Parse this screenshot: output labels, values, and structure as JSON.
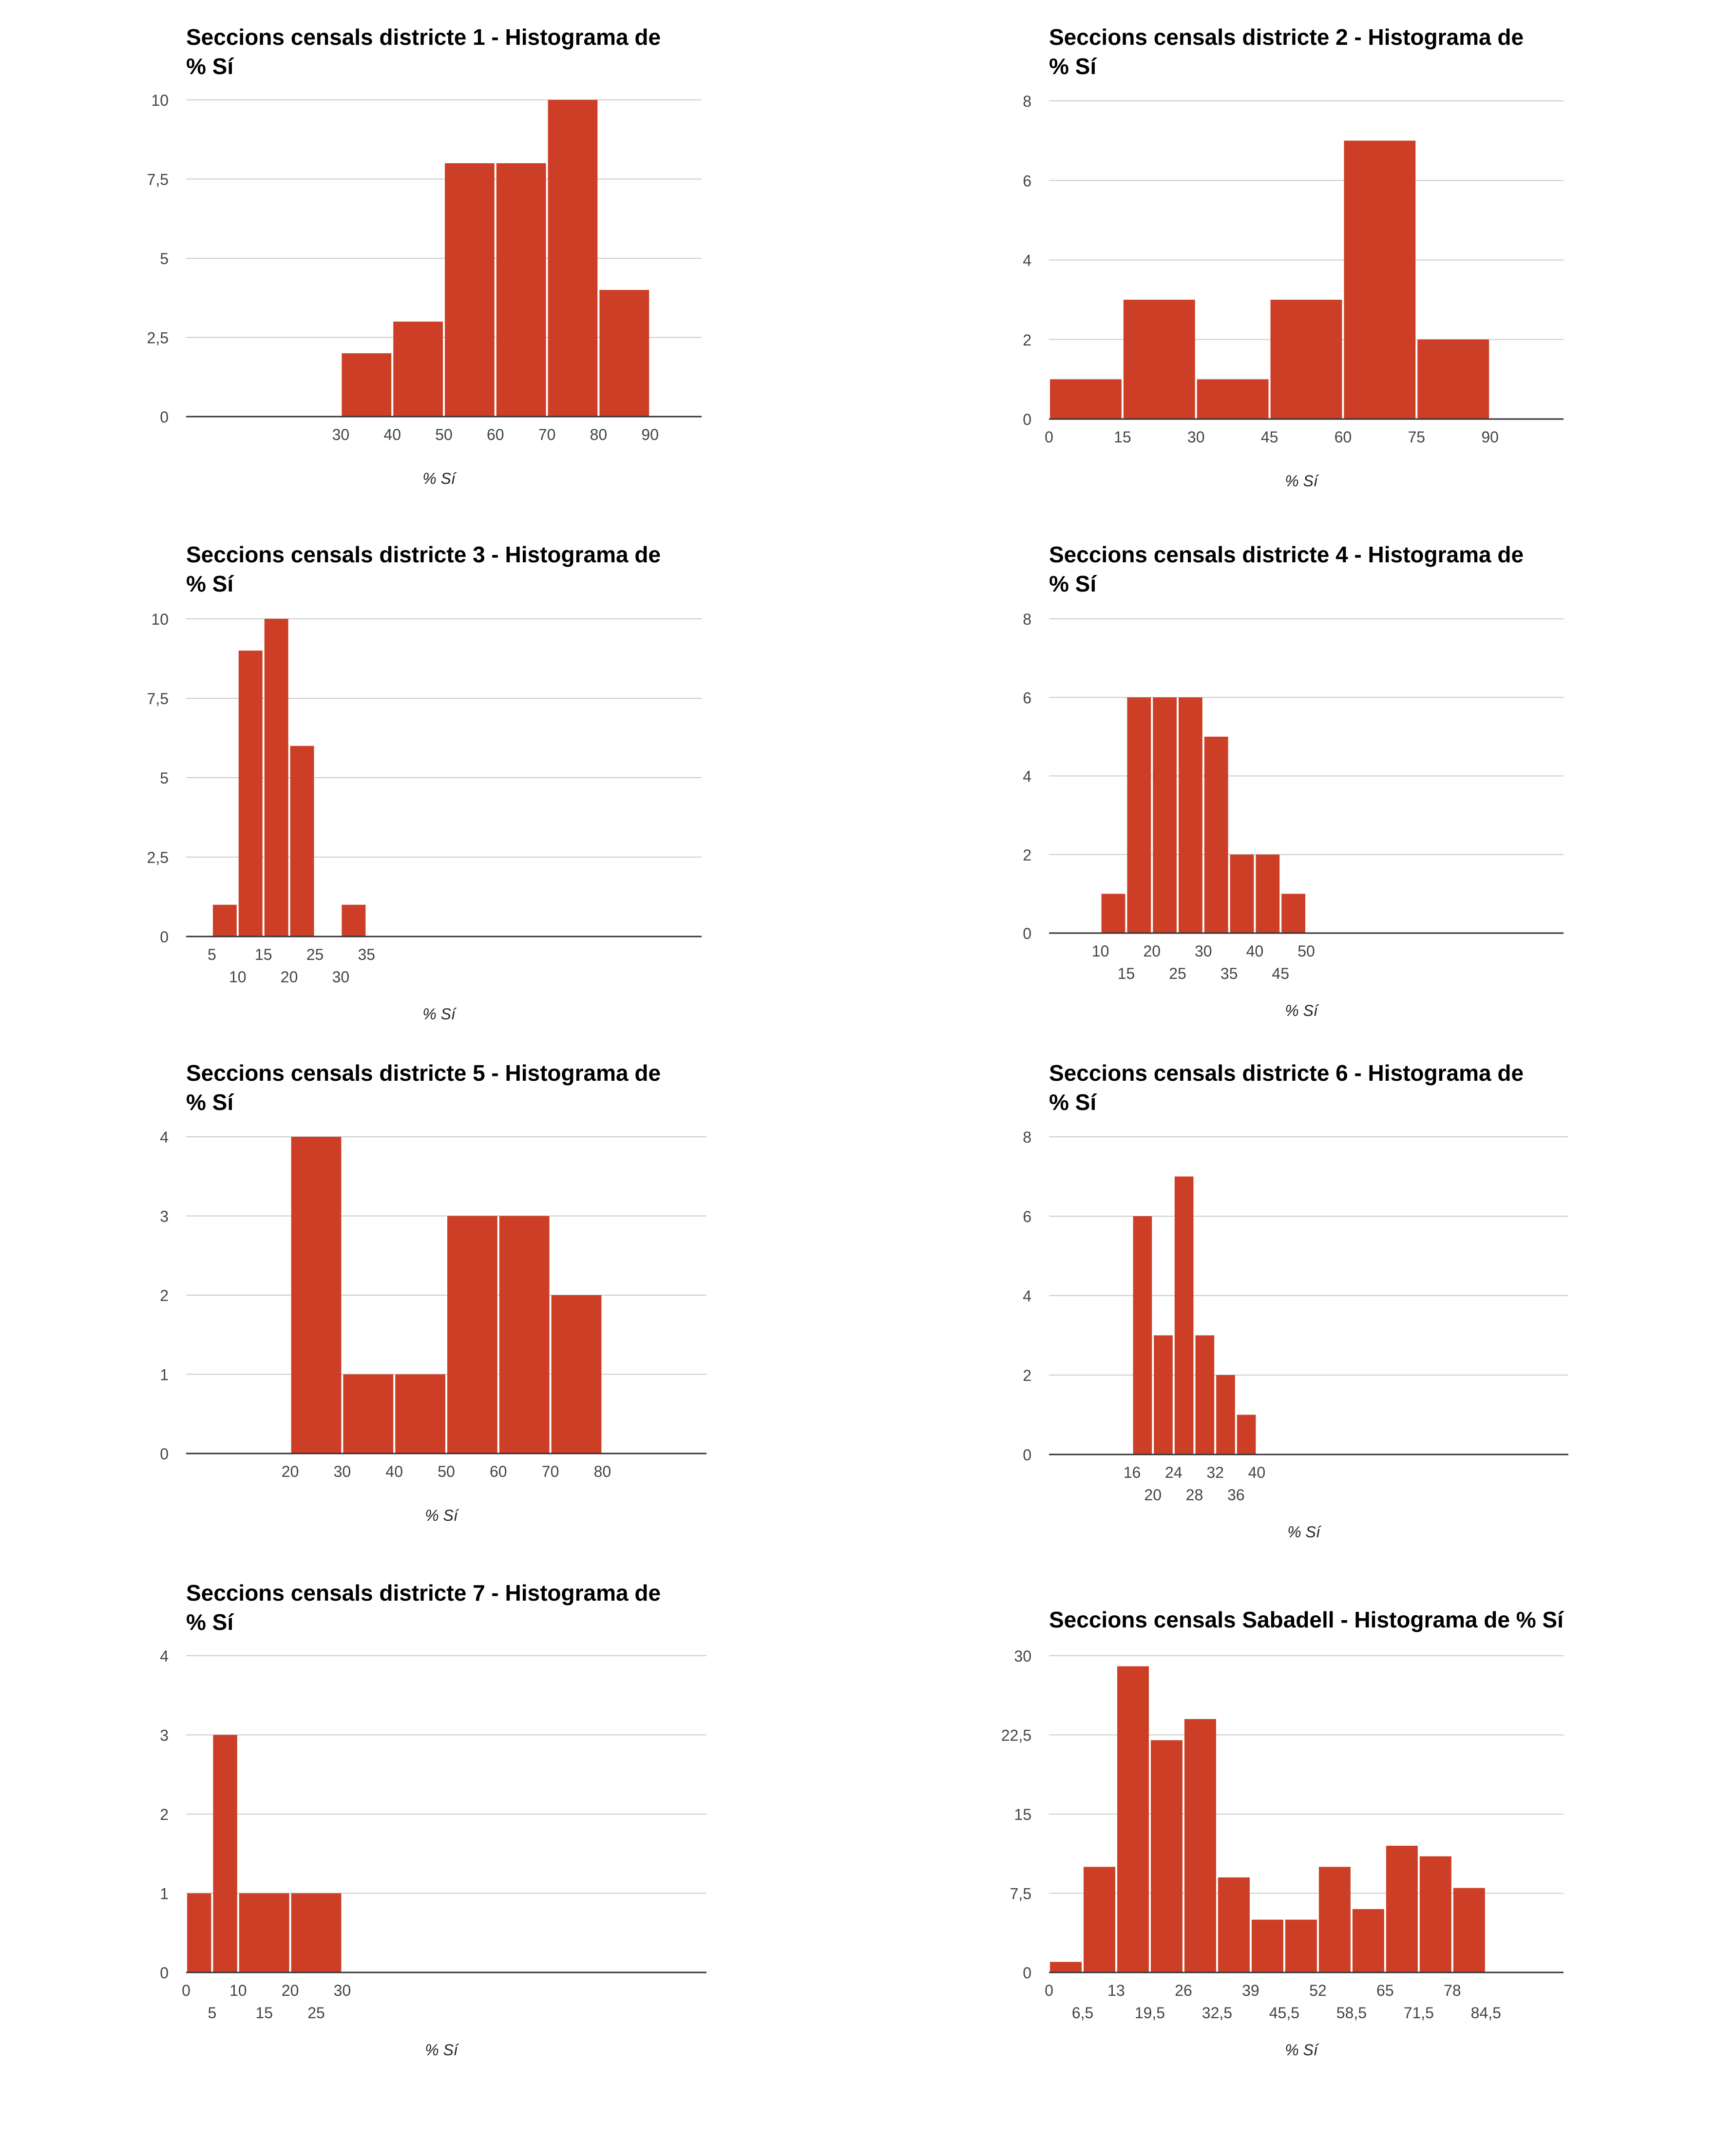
{
  "colors": {
    "bar": "#cc3f26",
    "grid": "#cccccc",
    "axis": "#333333"
  },
  "chart_data": [
    {
      "type": "bar",
      "title": "Seccions censals districte 1 - Histograma de % Sí",
      "xlabel": "% Sí",
      "ylabel": "",
      "ylim": [
        0,
        10
      ],
      "xlim": [
        0,
        100
      ],
      "yticks": [
        "0",
        "2,5",
        "5",
        "7,5",
        "10"
      ],
      "xticks": [
        "30",
        "40",
        "50",
        "60",
        "70",
        "80",
        "90"
      ],
      "bins": [
        {
          "x0": 30,
          "x1": 40,
          "count": 2
        },
        {
          "x0": 40,
          "x1": 50,
          "count": 3
        },
        {
          "x0": 50,
          "x1": 60,
          "count": 8
        },
        {
          "x0": 60,
          "x1": 70,
          "count": 8
        },
        {
          "x0": 70,
          "x1": 80,
          "count": 10
        },
        {
          "x0": 80,
          "x1": 90,
          "count": 4
        }
      ],
      "grid": true,
      "legend": "none"
    },
    {
      "type": "bar",
      "title": "Seccions censals districte 2 - Histograma de % Sí",
      "xlabel": "% Sí",
      "ylabel": "",
      "ylim": [
        0,
        8
      ],
      "xlim": [
        0,
        105
      ],
      "yticks": [
        "0",
        "2",
        "4",
        "6",
        "8"
      ],
      "xticks": [
        "0",
        "15",
        "30",
        "45",
        "60",
        "75",
        "90"
      ],
      "bins": [
        {
          "x0": 0,
          "x1": 15,
          "count": 1
        },
        {
          "x0": 15,
          "x1": 30,
          "count": 3
        },
        {
          "x0": 30,
          "x1": 45,
          "count": 1
        },
        {
          "x0": 45,
          "x1": 60,
          "count": 3
        },
        {
          "x0": 60,
          "x1": 75,
          "count": 7
        },
        {
          "x0": 75,
          "x1": 90,
          "count": 2
        }
      ],
      "grid": true,
      "legend": "none"
    },
    {
      "type": "bar",
      "title": "Seccions censals districte 3 - Histograma de % Sí",
      "xlabel": "% Sí",
      "ylabel": "",
      "ylim": [
        0,
        10
      ],
      "xlim": [
        0,
        100
      ],
      "yticks": [
        "0",
        "2,5",
        "5",
        "7,5",
        "10"
      ],
      "xticks": [
        "5",
        "10",
        "15",
        "20",
        "25",
        "30",
        "35"
      ],
      "bins": [
        {
          "x0": 5,
          "x1": 10,
          "count": 1
        },
        {
          "x0": 10,
          "x1": 15,
          "count": 9
        },
        {
          "x0": 15,
          "x1": 20,
          "count": 10
        },
        {
          "x0": 20,
          "x1": 25,
          "count": 6
        },
        {
          "x0": 25,
          "x1": 30,
          "count": 0
        },
        {
          "x0": 30,
          "x1": 35,
          "count": 1
        }
      ],
      "grid": true,
      "legend": "none"
    },
    {
      "type": "bar",
      "title": "Seccions censals districte 4 - Histograma de % Sí",
      "xlabel": "% Sí",
      "ylabel": "",
      "ylim": [
        0,
        8
      ],
      "xlim": [
        0,
        100
      ],
      "yticks": [
        "0",
        "2",
        "4",
        "6",
        "8"
      ],
      "xticks": [
        "10",
        "15",
        "20",
        "25",
        "30",
        "35",
        "40",
        "45",
        "50"
      ],
      "bins": [
        {
          "x0": 10,
          "x1": 15,
          "count": 1
        },
        {
          "x0": 15,
          "x1": 20,
          "count": 6
        },
        {
          "x0": 20,
          "x1": 25,
          "count": 6
        },
        {
          "x0": 25,
          "x1": 30,
          "count": 6
        },
        {
          "x0": 30,
          "x1": 35,
          "count": 5
        },
        {
          "x0": 35,
          "x1": 40,
          "count": 2
        },
        {
          "x0": 40,
          "x1": 45,
          "count": 2
        },
        {
          "x0": 45,
          "x1": 50,
          "count": 1
        }
      ],
      "grid": true,
      "legend": "none"
    },
    {
      "type": "bar",
      "title": "Seccions censals districte 5 - Histograma de % Sí",
      "xlabel": "% Sí",
      "ylabel": "",
      "ylim": [
        0,
        4
      ],
      "xlim": [
        0,
        100
      ],
      "yticks": [
        "0",
        "1",
        "2",
        "3",
        "4"
      ],
      "xticks": [
        "20",
        "30",
        "40",
        "50",
        "60",
        "70",
        "80"
      ],
      "bins": [
        {
          "x0": 20,
          "x1": 30,
          "count": 4
        },
        {
          "x0": 30,
          "x1": 40,
          "count": 1
        },
        {
          "x0": 40,
          "x1": 50,
          "count": 1
        },
        {
          "x0": 50,
          "x1": 60,
          "count": 3
        },
        {
          "x0": 60,
          "x1": 70,
          "count": 3
        },
        {
          "x0": 70,
          "x1": 80,
          "count": 2
        }
      ],
      "grid": true,
      "legend": "none"
    },
    {
      "type": "bar",
      "title": "Seccions censals districte 6 - Histograma de % Sí",
      "xlabel": "% Sí",
      "ylabel": "",
      "ylim": [
        0,
        8
      ],
      "xlim": [
        0,
        100
      ],
      "yticks": [
        "0",
        "2",
        "4",
        "6",
        "8"
      ],
      "xticks": [
        "16",
        "20",
        "24",
        "28",
        "32",
        "36",
        "40"
      ],
      "bins": [
        {
          "x0": 16,
          "x1": 20,
          "count": 6
        },
        {
          "x0": 20,
          "x1": 24,
          "count": 3
        },
        {
          "x0": 24,
          "x1": 28,
          "count": 7
        },
        {
          "x0": 28,
          "x1": 32,
          "count": 3
        },
        {
          "x0": 32,
          "x1": 36,
          "count": 2
        },
        {
          "x0": 36,
          "x1": 40,
          "count": 1
        }
      ],
      "grid": true,
      "legend": "none"
    },
    {
      "type": "bar",
      "title": "Seccions censals districte 7 - Histograma de % Sí",
      "xlabel": "% Sí",
      "ylabel": "",
      "ylim": [
        0,
        4
      ],
      "xlim": [
        0,
        100
      ],
      "yticks": [
        "0",
        "1",
        "2",
        "3",
        "4"
      ],
      "xticks": [
        "0",
        "5",
        "10",
        "15",
        "20",
        "25",
        "30"
      ],
      "bins": [
        {
          "x0": 0,
          "x1": 5,
          "count": 1
        },
        {
          "x0": 5,
          "x1": 10,
          "count": 3
        },
        {
          "x0": 10,
          "x1": 20,
          "count": 1
        },
        {
          "x0": 20,
          "x1": 30,
          "count": 1
        }
      ],
      "grid": true,
      "legend": "none"
    },
    {
      "type": "bar",
      "title": "Seccions censals Sabadell - Histograma de % Sí",
      "xlabel": "% Sí",
      "ylabel": "",
      "ylim": [
        0,
        30
      ],
      "xlim": [
        0,
        99.5
      ],
      "yticks": [
        "0",
        "7,5",
        "15",
        "22,5",
        "30"
      ],
      "xticks": [
        "0",
        "6,5",
        "13",
        "19,5",
        "26",
        "32,5",
        "39",
        "45,5",
        "52",
        "58,5",
        "65",
        "71,5",
        "78",
        "84,5"
      ],
      "bins": [
        {
          "x0": 0,
          "x1": 6.5,
          "count": 1
        },
        {
          "x0": 6.5,
          "x1": 13,
          "count": 10
        },
        {
          "x0": 13,
          "x1": 19.5,
          "count": 29
        },
        {
          "x0": 19.5,
          "x1": 26,
          "count": 22
        },
        {
          "x0": 26,
          "x1": 32.5,
          "count": 24
        },
        {
          "x0": 32.5,
          "x1": 39,
          "count": 9
        },
        {
          "x0": 39,
          "x1": 45.5,
          "count": 5
        },
        {
          "x0": 45.5,
          "x1": 52,
          "count": 5
        },
        {
          "x0": 52,
          "x1": 58.5,
          "count": 10
        },
        {
          "x0": 58.5,
          "x1": 65,
          "count": 6
        },
        {
          "x0": 65,
          "x1": 71.5,
          "count": 12
        },
        {
          "x0": 71.5,
          "x1": 78,
          "count": 11
        },
        {
          "x0": 78,
          "x1": 84.5,
          "count": 8
        }
      ],
      "grid": true,
      "legend": "none"
    }
  ]
}
